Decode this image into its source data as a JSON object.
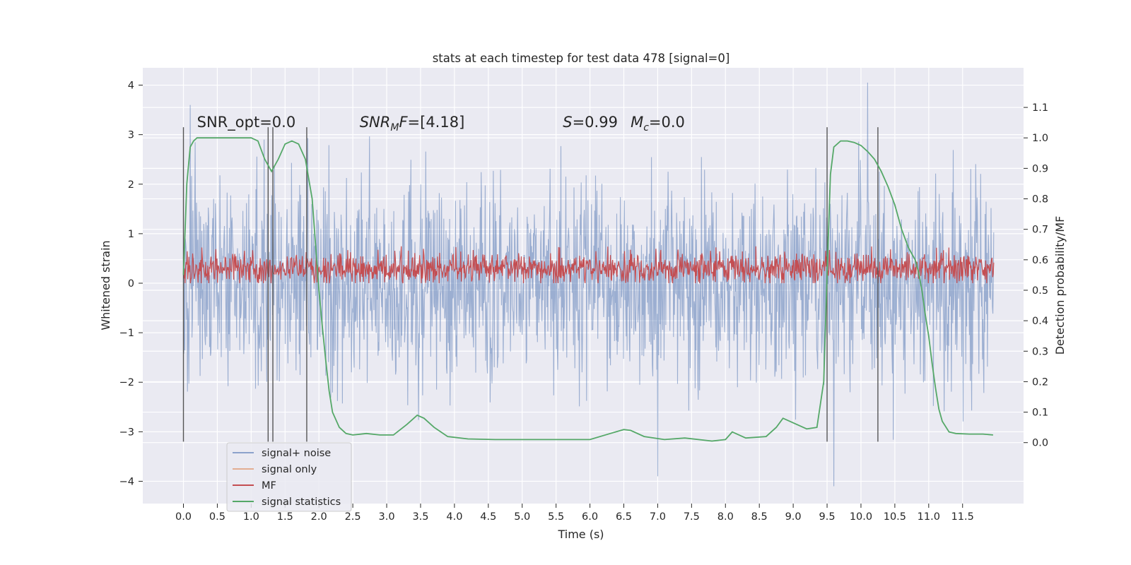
{
  "chart_data": {
    "type": "line",
    "title": "stats at each timestep for test data 478 [signal=0]",
    "xlabel": "Time (s)",
    "ylabel": "Whitened strain",
    "ylabel_right": "Detection probability/MF",
    "xlim": [
      -0.6,
      12.4
    ],
    "ylim": [
      -4.45,
      4.35
    ],
    "ylim_right": [
      -0.2,
      1.23
    ],
    "x_ticks": [
      "0.0",
      "0.5",
      "1.0",
      "1.5",
      "2.0",
      "2.5",
      "3.0",
      "3.5",
      "4.0",
      "4.5",
      "5.0",
      "5.5",
      "6.0",
      "6.5",
      "7.0",
      "7.5",
      "8.0",
      "8.5",
      "9.0",
      "9.5",
      "10.0",
      "10.5",
      "11.0",
      "11.5"
    ],
    "y_ticks": [
      "4",
      "3",
      "2",
      "1",
      "0",
      "−1",
      "−2",
      "−3",
      "−4"
    ],
    "y_ticks_right": [
      "1.1",
      "1.0",
      "0.9",
      "0.8",
      "0.7",
      "0.6",
      "0.5",
      "0.4",
      "0.3",
      "0.2",
      "0.1",
      "0.0"
    ],
    "grid": true,
    "legend_position": "lower-left",
    "annotations": [
      {
        "text": "SNR_opt=0.0",
        "x": 0.2
      },
      {
        "text": "SNRMF=[4.18]",
        "x": 2.6
      },
      {
        "text": "S=0.99",
        "x": 5.6
      },
      {
        "text": "Mc=0.0",
        "x": 6.6
      }
    ],
    "vertical_markers": [
      0.0,
      1.25,
      1.32,
      1.82,
      9.5,
      10.25
    ],
    "series": [
      {
        "name": "signal+ noise",
        "color": "#4c72b0",
        "description_of_values": "whitened strain noise, approx range -4.1 to 4.05",
        "envelope_upper": [
          2.2,
          2.6,
          2.5,
          2.7,
          2.4,
          2.6,
          2.5,
          2.8,
          2.6,
          2.5
        ],
        "envelope_lower": [
          -2.3,
          -2.5,
          -2.6,
          -2.4,
          -2.5,
          -2.7,
          -2.5,
          -2.4,
          -2.6,
          -2.5
        ],
        "extremes": [
          [
            0.1,
            3.6
          ],
          [
            10.1,
            4.05
          ],
          [
            9.6,
            -4.1
          ],
          [
            7.0,
            -3.9
          ]
        ]
      },
      {
        "name": "signal only",
        "color": "#dd8452",
        "values": []
      },
      {
        "name": "MF",
        "color": "#c44e52",
        "description_of_values": "matched filter output, approx range 0.0 to 0.8"
      },
      {
        "name": "signal statistics",
        "color": "#55a868",
        "axis": "right",
        "x": [
          0.0,
          0.05,
          0.1,
          0.15,
          0.2,
          0.3,
          0.5,
          0.7,
          0.9,
          1.0,
          1.1,
          1.2,
          1.3,
          1.4,
          1.5,
          1.6,
          1.7,
          1.8,
          1.9,
          1.95,
          2.0,
          2.05,
          2.1,
          2.15,
          2.2,
          2.3,
          2.4,
          2.5,
          2.7,
          2.9,
          3.1,
          3.3,
          3.45,
          3.55,
          3.7,
          3.9,
          4.2,
          4.6,
          5.0,
          5.6,
          6.0,
          6.3,
          6.5,
          6.6,
          6.8,
          7.1,
          7.4,
          7.8,
          8.0,
          8.1,
          8.3,
          8.6,
          8.75,
          8.85,
          9.0,
          9.2,
          9.35,
          9.45,
          9.5,
          9.55,
          9.6,
          9.7,
          9.8,
          9.9,
          10.0,
          10.1,
          10.2,
          10.3,
          10.4,
          10.5,
          10.6,
          10.7,
          10.8,
          10.85,
          10.9,
          10.95,
          11.0,
          11.05,
          11.1,
          11.15,
          11.2,
          11.3,
          11.4,
          11.6,
          11.8,
          11.95
        ],
        "values": [
          0.55,
          0.85,
          0.97,
          0.99,
          1.0,
          1.0,
          1.0,
          1.0,
          1.0,
          1.0,
          0.99,
          0.93,
          0.89,
          0.93,
          0.98,
          0.99,
          0.98,
          0.93,
          0.8,
          0.65,
          0.5,
          0.38,
          0.27,
          0.17,
          0.1,
          0.05,
          0.03,
          0.025,
          0.03,
          0.025,
          0.025,
          0.06,
          0.09,
          0.08,
          0.05,
          0.02,
          0.012,
          0.01,
          0.01,
          0.01,
          0.01,
          0.03,
          0.043,
          0.04,
          0.02,
          0.01,
          0.015,
          0.005,
          0.01,
          0.035,
          0.015,
          0.02,
          0.05,
          0.08,
          0.065,
          0.045,
          0.05,
          0.2,
          0.55,
          0.88,
          0.97,
          0.99,
          0.99,
          0.985,
          0.975,
          0.955,
          0.93,
          0.89,
          0.84,
          0.78,
          0.7,
          0.64,
          0.6,
          0.56,
          0.5,
          0.42,
          0.35,
          0.26,
          0.18,
          0.11,
          0.07,
          0.035,
          0.03,
          0.028,
          0.028,
          0.025
        ]
      }
    ]
  }
}
